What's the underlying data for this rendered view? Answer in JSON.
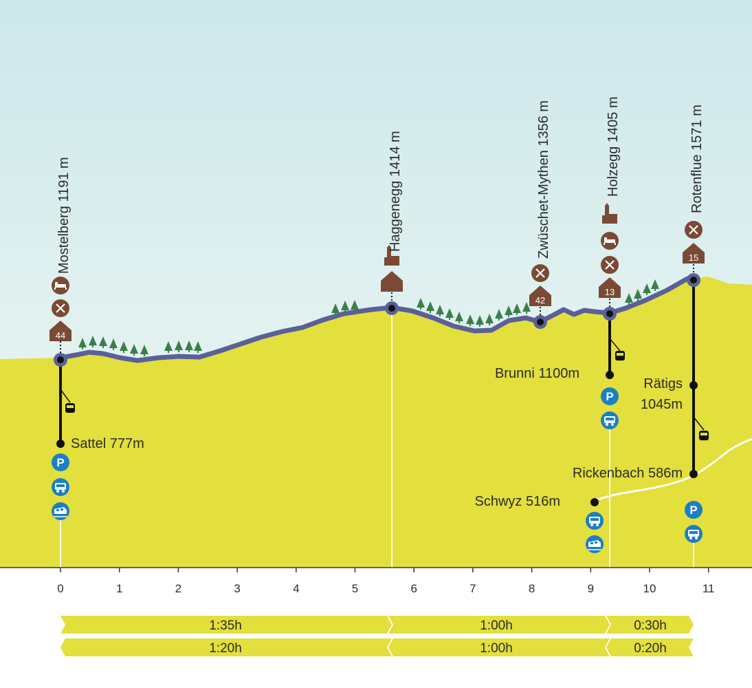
{
  "summits": [
    {
      "id": "mostelberg",
      "name": "Mostelberg 1191 m",
      "badge": "44"
    },
    {
      "id": "haggenegg",
      "name": "Haggenegg 1414 m"
    },
    {
      "id": "zwueschet",
      "name": "Zwüschet-Mythen 1356 m",
      "badge": "42"
    },
    {
      "id": "holzegg",
      "name": "Holzegg 1405 m",
      "badge": "13"
    },
    {
      "id": "rotenflue",
      "name": "Rotenflue 1571 m",
      "badge": "15"
    }
  ],
  "valley": {
    "sattel": "Sattel 777m",
    "brunni": "Brunni 1100m",
    "raetigs_name": "Rätigs",
    "raetigs_alt": "1045m",
    "rickenbach": "Rickenbach 586m",
    "schwyz": "Schwyz 516m"
  },
  "axis": {
    "ticks": [
      "0",
      "1",
      "2",
      "3",
      "4",
      "5",
      "6",
      "7",
      "8",
      "9",
      "10",
      "11"
    ]
  },
  "times": {
    "forward": [
      "1:35h",
      "1:00h",
      "0:30h"
    ],
    "backward": [
      "1:20h",
      "1:00h",
      "0:20h"
    ]
  },
  "colors": {
    "sky_top": "#cfe8ea",
    "sky_bottom": "#eef8f6",
    "ground": "#e3df3c",
    "trail": "#5b5f9a",
    "brown": "#7a4a35",
    "blue": "#1b7fc4",
    "black": "#111111"
  }
}
